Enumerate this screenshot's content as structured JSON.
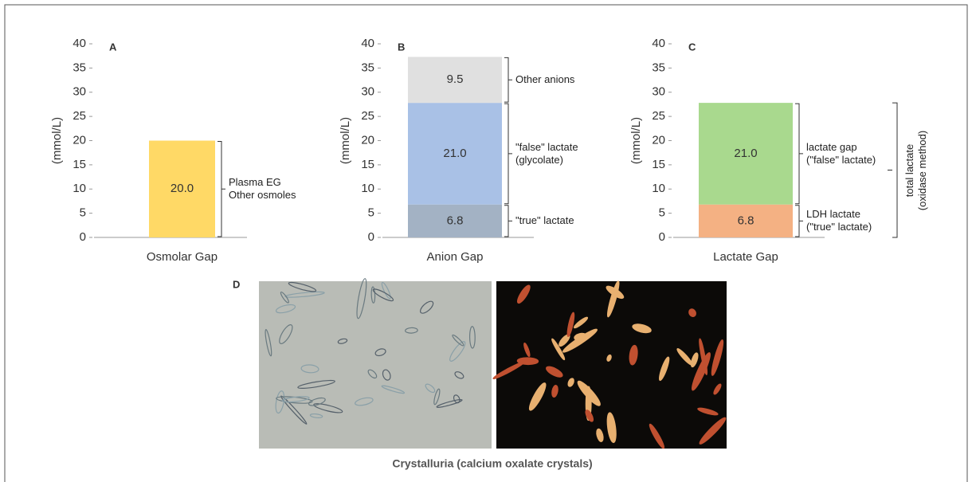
{
  "chart_data": [
    {
      "type": "stacked_bar",
      "panel_label": "A",
      "ylabel": "(mmol/L)",
      "categories": [
        "Osmolar Gap"
      ],
      "ylim": [
        0,
        40
      ],
      "yticks": [
        0,
        5,
        10,
        15,
        20,
        25,
        30,
        35,
        40
      ],
      "series": [
        {
          "name": "Plasma EG\nOther osmoles",
          "color": "#ffd966",
          "values": [
            20.0
          ],
          "value_labels": [
            "20.0"
          ]
        }
      ]
    },
    {
      "type": "stacked_bar",
      "panel_label": "B",
      "ylabel": "(mmol/L)",
      "categories": [
        "Anion Gap"
      ],
      "ylim": [
        0,
        40
      ],
      "yticks": [
        0,
        5,
        10,
        15,
        20,
        25,
        30,
        35,
        40
      ],
      "series": [
        {
          "name": "\"true\" lactate",
          "color": "#a3b2c4",
          "values": [
            6.8
          ],
          "value_labels": [
            "6.8"
          ]
        },
        {
          "name": "\"false\" lactate\n(glycolate)",
          "color": "#a9c1e6",
          "values": [
            21.0
          ],
          "value_labels": [
            "21.0"
          ]
        },
        {
          "name": "Other anions",
          "color": "#e0e0e0",
          "values": [
            9.5
          ],
          "value_labels": [
            "9.5"
          ]
        }
      ]
    },
    {
      "type": "stacked_bar",
      "panel_label": "C",
      "ylabel": "(mmol/L)",
      "categories": [
        "Lactate Gap"
      ],
      "ylim": [
        0,
        40
      ],
      "yticks": [
        0,
        5,
        10,
        15,
        20,
        25,
        30,
        35,
        40
      ],
      "annotation": "total lactate\n(oxidase method)",
      "series": [
        {
          "name": "LDH lactate\n(\"true\" lactate)",
          "color": "#f4b183",
          "values": [
            6.8
          ],
          "value_labels": [
            "6.8"
          ]
        },
        {
          "name": "lactate gap\n(\"false\" lactate)",
          "color": "#a9d98e",
          "values": [
            21.0
          ],
          "value_labels": [
            "21.0"
          ]
        }
      ]
    }
  ],
  "panel_d": {
    "label": "D",
    "caption": "Crystalluria (calcium oxalate crystals)"
  }
}
